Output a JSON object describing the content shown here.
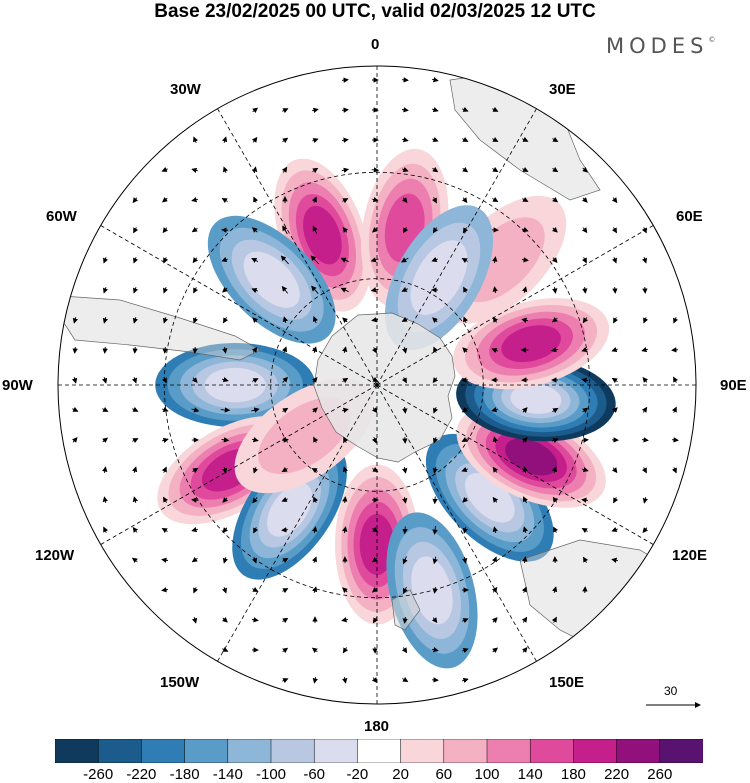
{
  "title": "Base 23/02/2025 00 UTC, valid 02/03/2025 12 UTC",
  "brand": "MODES",
  "brand_mark": "©",
  "longitude_labels": {
    "lon_0": "0",
    "lon_30e": "30E",
    "lon_60e": "60E",
    "lon_90e": "90E",
    "lon_120e": "120E",
    "lon_150e": "150E",
    "lon_180": "180",
    "lon_150w": "150W",
    "lon_120w": "120W",
    "lon_90w": "90W",
    "lon_60w": "60W",
    "lon_30w": "30W"
  },
  "reference_vector": {
    "label": "30"
  },
  "colorbar": {
    "labels": [
      "-260",
      "-220",
      "-180",
      "-140",
      "-100",
      "-60",
      "-20",
      "20",
      "60",
      "100",
      "140",
      "180",
      "220",
      "260"
    ],
    "colors": [
      "#0f3a5e",
      "#1c5c8c",
      "#2f7db5",
      "#5a9cc8",
      "#8db6d8",
      "#b8c8e2",
      "#dcdcef",
      "#ffffff",
      "#f8d6da",
      "#f4b1c4",
      "#ec7fb0",
      "#e04a9d",
      "#c41f8b",
      "#91107c",
      "#5a1270"
    ]
  },
  "map": {
    "projection": "south-polar-stereographic",
    "anomalies": [
      {
        "lon": -20,
        "colat": 45,
        "value": 190
      },
      {
        "lon": 10,
        "colat": 45,
        "value": 160
      },
      {
        "lon": -45,
        "colat": 42,
        "value": -170
      },
      {
        "lon": -90,
        "colat": 40,
        "value": -180
      },
      {
        "lon": -120,
        "colat": 48,
        "value": 180
      },
      {
        "lon": -145,
        "colat": 43,
        "value": -200
      },
      {
        "lon": 180,
        "colat": 45,
        "value": 180
      },
      {
        "lon": 135,
        "colat": 45,
        "value": -200
      },
      {
        "lon": 115,
        "colat": 48,
        "value": 230
      },
      {
        "lon": 95,
        "colat": 45,
        "value": -260
      },
      {
        "lon": 75,
        "colat": 45,
        "value": 180
      },
      {
        "lon": 45,
        "colat": 50,
        "value": 90
      },
      {
        "lon": 30,
        "colat": 35,
        "value": -120
      },
      {
        "lon": -125,
        "colat": 25,
        "value": 80
      },
      {
        "lon": 165,
        "colat": 60,
        "value": -140
      }
    ]
  }
}
